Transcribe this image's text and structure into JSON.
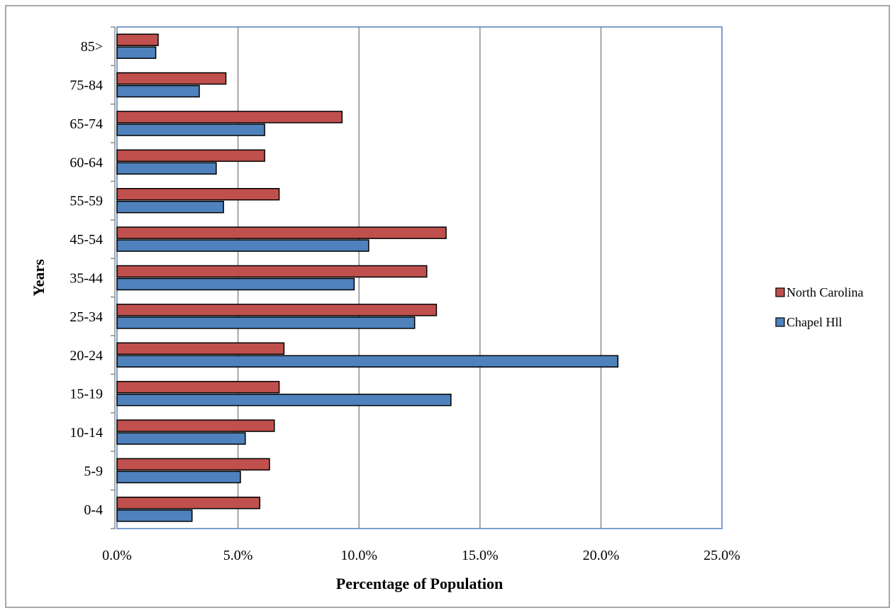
{
  "chart_data": {
    "type": "bar",
    "orientation": "horizontal",
    "title": "",
    "xlabel": "Percentage of Population",
    "ylabel": "Years",
    "xlim": [
      0,
      25
    ],
    "x_ticks": [
      "0.0%",
      "5.0%",
      "10.0%",
      "15.0%",
      "20.0%",
      "25.0%"
    ],
    "grid": "vertical",
    "legend_position": "right",
    "categories": [
      "0-4",
      "5-9",
      "10-14",
      "15-19",
      "20-24",
      "25-34",
      "35-44",
      "45-54",
      "55-59",
      "60-64",
      "65-74",
      "75-84",
      "85>"
    ],
    "series": [
      {
        "name": "North Carolina",
        "color": "#c0504d",
        "values": [
          5.9,
          6.3,
          6.5,
          6.7,
          6.9,
          13.2,
          12.8,
          13.6,
          6.7,
          6.1,
          9.3,
          4.5,
          1.7
        ]
      },
      {
        "name": "Chapel Hll",
        "color": "#4f81bd",
        "values": [
          3.1,
          5.1,
          5.3,
          13.8,
          20.7,
          12.3,
          9.8,
          10.4,
          4.4,
          4.1,
          6.1,
          3.4,
          1.6
        ]
      }
    ]
  }
}
